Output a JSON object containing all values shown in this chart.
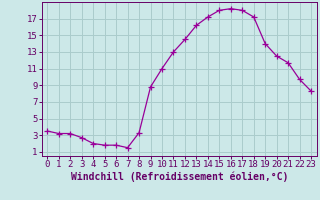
{
  "x": [
    0,
    1,
    2,
    3,
    4,
    5,
    6,
    7,
    8,
    9,
    10,
    11,
    12,
    13,
    14,
    15,
    16,
    17,
    18,
    19,
    20,
    21,
    22,
    23
  ],
  "y": [
    3.5,
    3.2,
    3.2,
    2.7,
    2.0,
    1.8,
    1.8,
    1.5,
    3.3,
    8.8,
    11.0,
    13.0,
    14.5,
    16.2,
    17.2,
    18.0,
    18.2,
    18.0,
    17.2,
    14.0,
    12.5,
    11.7,
    9.7,
    8.3
  ],
  "line_color": "#990099",
  "marker": "+",
  "marker_size": 4,
  "bg_color": "#cce8e8",
  "grid_color": "#aacccc",
  "xlabel": "Windchill (Refroidissement éolien,°C)",
  "xlabel_color": "#660066",
  "xlabel_fontsize": 7,
  "tick_color": "#660066",
  "tick_fontsize": 6.5,
  "yticks": [
    1,
    3,
    5,
    7,
    9,
    11,
    13,
    15,
    17
  ],
  "ylim": [
    0.5,
    19.0
  ],
  "xlim": [
    -0.5,
    23.5
  ],
  "xtick_labels": [
    "0",
    "1",
    "2",
    "3",
    "4",
    "5",
    "6",
    "7",
    "8",
    "9",
    "10",
    "11",
    "12",
    "13",
    "14",
    "15",
    "16",
    "17",
    "18",
    "19",
    "20",
    "21",
    "22",
    "23"
  ]
}
